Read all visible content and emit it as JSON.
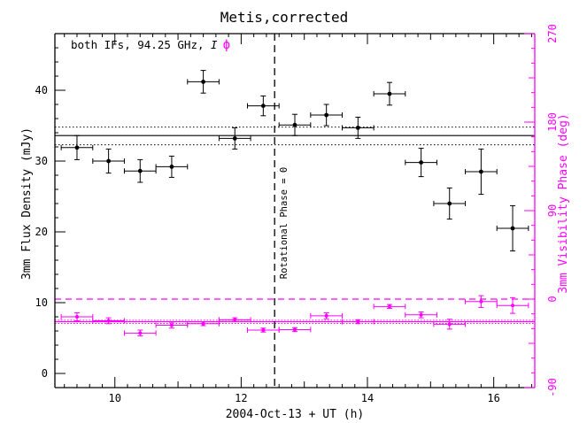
{
  "chart_data": {
    "type": "scatter",
    "title": "Metis,corrected",
    "xlabel": "2004-Oct-13 + UT (h)",
    "ylabel": "3mm Flux Density (mJy)",
    "y2label": "3mm Visibility Phase (deg)",
    "annotation": {
      "text_prefix": "both IFs, 94.25 GHz, ",
      "text_italic": "I",
      "phi_symbol": "ϕ"
    },
    "vline_label": "Rotational Phase = 0",
    "xlim": [
      9.05,
      16.65
    ],
    "ylim": [
      -2,
      48
    ],
    "y2lim": [
      -90,
      270
    ],
    "xticks": [
      "10",
      "12",
      "14",
      "16"
    ],
    "yticks": [
      "0",
      "10",
      "20",
      "30",
      "40"
    ],
    "y2ticks": [
      "-90",
      "0",
      "90",
      "180",
      "270"
    ],
    "grid": false,
    "vline_x": 12.53,
    "colors": {
      "flux": "#000000",
      "phase": "#ff00ff"
    },
    "flux_series": [
      {
        "x": 9.4,
        "y": 31.9,
        "xerr": 0.25,
        "yerr": 1.7
      },
      {
        "x": 9.9,
        "y": 30.0,
        "xerr": 0.25,
        "yerr": 1.7
      },
      {
        "x": 10.4,
        "y": 28.6,
        "xerr": 0.25,
        "yerr": 1.6
      },
      {
        "x": 10.9,
        "y": 29.2,
        "xerr": 0.25,
        "yerr": 1.5
      },
      {
        "x": 11.4,
        "y": 41.2,
        "xerr": 0.25,
        "yerr": 1.6
      },
      {
        "x": 11.9,
        "y": 33.2,
        "xerr": 0.25,
        "yerr": 1.5
      },
      {
        "x": 12.35,
        "y": 37.8,
        "xerr": 0.25,
        "yerr": 1.4
      },
      {
        "x": 12.85,
        "y": 35.1,
        "xerr": 0.25,
        "yerr": 1.5
      },
      {
        "x": 13.35,
        "y": 36.5,
        "xerr": 0.25,
        "yerr": 1.5
      },
      {
        "x": 13.85,
        "y": 34.7,
        "xerr": 0.25,
        "yerr": 1.5
      },
      {
        "x": 14.35,
        "y": 39.5,
        "xerr": 0.25,
        "yerr": 1.6
      },
      {
        "x": 14.85,
        "y": 29.8,
        "xerr": 0.25,
        "yerr": 2.0
      },
      {
        "x": 15.3,
        "y": 24.0,
        "xerr": 0.25,
        "yerr": 2.2
      },
      {
        "x": 15.8,
        "y": 28.5,
        "xerr": 0.25,
        "yerr": 3.2
      },
      {
        "x": 16.3,
        "y": 20.5,
        "xerr": 0.25,
        "yerr": 3.2
      }
    ],
    "flux_mean": 33.6,
    "flux_bounds": [
      32.3,
      34.8
    ],
    "phase_series": [
      {
        "x": 9.4,
        "y": -18.0,
        "xerr": 0.25,
        "yerr": 4
      },
      {
        "x": 9.9,
        "y": -22.0,
        "xerr": 0.25,
        "yerr": 3
      },
      {
        "x": 10.4,
        "y": -34.5,
        "xerr": 0.25,
        "yerr": 3
      },
      {
        "x": 10.9,
        "y": -26.5,
        "xerr": 0.25,
        "yerr": 3
      },
      {
        "x": 11.4,
        "y": -25.0,
        "xerr": 0.25,
        "yerr": 2
      },
      {
        "x": 11.9,
        "y": -21.0,
        "xerr": 0.25,
        "yerr": 2
      },
      {
        "x": 12.35,
        "y": -31.5,
        "xerr": 0.25,
        "yerr": 2
      },
      {
        "x": 12.85,
        "y": -31.0,
        "xerr": 0.25,
        "yerr": 2
      },
      {
        "x": 13.35,
        "y": -17.0,
        "xerr": 0.25,
        "yerr": 3
      },
      {
        "x": 13.85,
        "y": -23.0,
        "xerr": 0.25,
        "yerr": 2
      },
      {
        "x": 14.35,
        "y": -7.5,
        "xerr": 0.25,
        "yerr": 2
      },
      {
        "x": 14.85,
        "y": -16.0,
        "xerr": 0.25,
        "yerr": 3
      },
      {
        "x": 15.3,
        "y": -25.5,
        "xerr": 0.25,
        "yerr": 5
      },
      {
        "x": 15.8,
        "y": -2.5,
        "xerr": 0.25,
        "yerr": 6
      },
      {
        "x": 16.3,
        "y": -6.5,
        "xerr": 0.25,
        "yerr": 8
      }
    ],
    "phase_mean": -23.0,
    "phase_bounds": [
      -24.8,
      -21.5
    ],
    "phase_dashed": 0.0
  }
}
